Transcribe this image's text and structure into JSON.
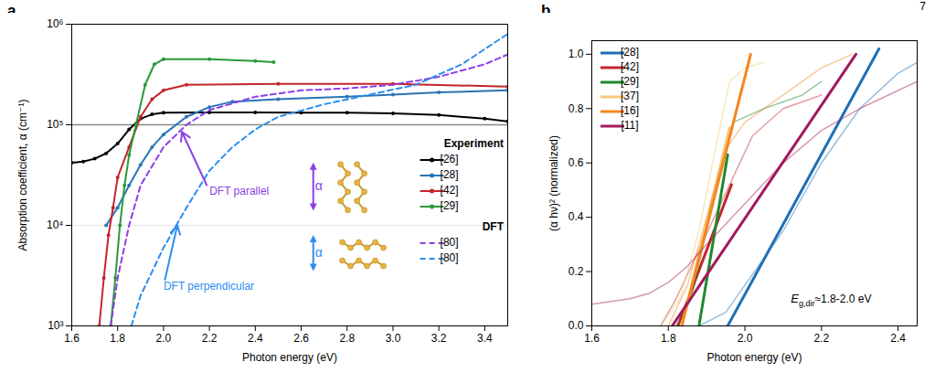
{
  "page_number": "7",
  "chart_data": [
    {
      "type": "line",
      "panel": "a",
      "x_label": "Photon energy (eV)",
      "y_label": "Absorption coefficient, α (cm⁻¹)",
      "xlim": [
        1.6,
        3.5
      ],
      "xticks": [
        1.6,
        1.8,
        {
          "value": 2,
          "label": "2.0"
        },
        2.2,
        2.4,
        2.6,
        2.8,
        {
          "value": 3,
          "label": "3.0"
        },
        3.2,
        3.4
      ],
      "ylim": [
        1000,
        1000000
      ],
      "yticks": [
        {
          "value": 1000,
          "label": "10³"
        },
        {
          "value": 10000,
          "label": "10⁴"
        },
        {
          "value": 100000,
          "label": "10⁵"
        },
        {
          "value": 1000000,
          "label": "10⁶"
        }
      ],
      "log": "y",
      "grid": true,
      "legend": "lower right",
      "reference_line": 100000,
      "series": [
        {
          "name": "[26]",
          "group": "Experiment",
          "color": "#000000",
          "marker": "circle",
          "line_style": "solid",
          "x": [
            1.6,
            1.65,
            1.7,
            1.75,
            1.8,
            1.85,
            1.9,
            1.95,
            2.0,
            2.2,
            2.4,
            2.6,
            2.8,
            3.0,
            3.2,
            3.4,
            3.5
          ],
          "values": [
            42000,
            43000,
            46000,
            52000,
            65000,
            90000,
            115000,
            127000,
            132000,
            133000,
            133000,
            132000,
            132000,
            130000,
            125000,
            115000,
            108000
          ]
        },
        {
          "name": "[28]",
          "group": "Experiment",
          "color": "#2a74b5",
          "marker": "circle",
          "line_style": "solid",
          "x": [
            1.75,
            1.8,
            1.85,
            1.9,
            1.95,
            2.0,
            2.1,
            2.2,
            2.3,
            2.5,
            2.8,
            3.0,
            3.2,
            3.5
          ],
          "values": [
            10000,
            15000,
            25000,
            40000,
            60000,
            80000,
            120000,
            150000,
            170000,
            180000,
            190000,
            200000,
            210000,
            220000
          ]
        },
        {
          "name": "[42]",
          "group": "Experiment",
          "color": "#c4252b",
          "marker": "circle",
          "line_style": "solid",
          "x": [
            1.72,
            1.74,
            1.76,
            1.78,
            1.8,
            1.85,
            1.9,
            1.95,
            2.0,
            2.1,
            2.5,
            3.0,
            3.5
          ],
          "values": [
            1000,
            3000,
            8000,
            15000,
            30000,
            60000,
            120000,
            180000,
            220000,
            250000,
            255000,
            255000,
            240000
          ]
        },
        {
          "name": "[29]",
          "group": "Experiment",
          "color": "#2a9a3a",
          "marker": "circle",
          "line_style": "solid",
          "x": [
            1.77,
            1.79,
            1.81,
            1.83,
            1.85,
            1.88,
            1.92,
            1.96,
            2.0,
            2.2,
            2.4,
            2.48
          ],
          "values": [
            1000,
            3000,
            10000,
            25000,
            50000,
            100000,
            250000,
            400000,
            450000,
            450000,
            430000,
            420000
          ]
        },
        {
          "name": "[80]",
          "group": "DFT",
          "color": "#8b3fe6",
          "line_style": "dashed",
          "x": [
            1.77,
            1.8,
            1.85,
            1.9,
            2.0,
            2.1,
            2.2,
            2.4,
            2.6,
            2.8,
            3.0,
            3.2,
            3.4,
            3.5
          ],
          "values": [
            1000,
            3000,
            10000,
            25000,
            60000,
            100000,
            140000,
            190000,
            220000,
            230000,
            250000,
            300000,
            400000,
            500000
          ]
        },
        {
          "name": "[80]",
          "group": "DFT",
          "color": "#2b8ef0",
          "line_style": "dashed",
          "x": [
            1.86,
            1.9,
            2.0,
            2.1,
            2.2,
            2.3,
            2.4,
            2.5,
            2.7,
            2.9,
            3.1,
            3.3,
            3.5
          ],
          "values": [
            1000,
            2000,
            6000,
            15000,
            35000,
            60000,
            90000,
            120000,
            160000,
            200000,
            250000,
            400000,
            800000
          ]
        }
      ],
      "annotations": [
        {
          "text": "DFT parallel",
          "x": 2.2,
          "y": 22000,
          "color": "#8b3fe6",
          "arrow_to": [
            2.08,
            85000
          ]
        },
        {
          "text": "DFT perpendicular",
          "x": 2.0,
          "y": 2500,
          "color": "#2b8ef0",
          "arrow_to": [
            2.06,
            10000
          ]
        }
      ],
      "icon_labels": [
        {
          "text": "α",
          "color": "#8b3fe6"
        },
        {
          "text": "α",
          "color": "#2b8ef0"
        }
      ]
    },
    {
      "type": "line",
      "panel": "b",
      "x_label": "Photon energy (eV)",
      "y_label": "(α hν)² (normalized)",
      "xlim": [
        1.6,
        2.45
      ],
      "xticks": [
        1.6,
        1.8,
        {
          "value": 2,
          "label": "2.0"
        },
        2.2,
        2.4
      ],
      "ylim": [
        0,
        1.05
      ],
      "yticks": [
        {
          "value": 0,
          "label": "0.0"
        },
        0.2,
        0.4,
        0.6,
        0.8,
        {
          "value": 1,
          "label": "1.0"
        }
      ],
      "grid": false,
      "legend": "upper left",
      "series": [
        {
          "name": "[28]",
          "color": "#1f6fb5",
          "line_style": "solid",
          "x": [
            1.88,
            1.95,
            2.0,
            2.1,
            2.2,
            2.3,
            2.4,
            2.45
          ],
          "values": [
            0,
            0.05,
            0.15,
            0.35,
            0.6,
            0.8,
            0.93,
            0.97
          ],
          "fit_x": [
            1.955,
            2.35
          ],
          "fit_values": [
            0,
            1.02
          ]
        },
        {
          "name": "[42]",
          "color": "#c1272d",
          "line_style": "solid",
          "x": [
            1.78,
            1.82,
            1.87,
            1.92,
            1.97,
            2.02,
            2.1,
            2.2
          ],
          "values": [
            0,
            0.1,
            0.25,
            0.4,
            0.55,
            0.7,
            0.8,
            0.85
          ],
          "fit_x": [
            1.825,
            1.965
          ],
          "fit_values": [
            0,
            0.52
          ]
        },
        {
          "name": "[29]",
          "color": "#1e8a2e",
          "line_style": "solid",
          "x": [
            1.82,
            1.86,
            1.9,
            1.94,
            1.97,
            2.05,
            2.15,
            2.2
          ],
          "values": [
            0,
            0.1,
            0.35,
            0.6,
            0.75,
            0.8,
            0.85,
            0.9
          ],
          "fit_x": [
            1.88,
            1.955
          ],
          "fit_values": [
            0,
            0.63
          ]
        },
        {
          "name": "[37]",
          "color": "#f7c978",
          "line_style": "solid",
          "x": [
            1.78,
            1.83,
            1.88,
            1.93,
            1.96,
            2.0,
            2.05
          ],
          "values": [
            0,
            0.1,
            0.35,
            0.7,
            0.9,
            0.95,
            0.97
          ],
          "fit_x": [
            1.835,
            1.96
          ],
          "fit_values": [
            0,
            0.73
          ]
        },
        {
          "name": "[16]",
          "color": "#f5861f",
          "line_style": "solid",
          "x": [
            1.8,
            1.85,
            1.9,
            1.95,
            2.0,
            2.1,
            2.2,
            2.28
          ],
          "values": [
            0,
            0.15,
            0.4,
            0.65,
            0.75,
            0.85,
            0.95,
            1.0
          ],
          "fit_x": [
            1.835,
            2.015
          ],
          "fit_values": [
            0,
            1.0
          ]
        },
        {
          "name": "[11]",
          "color": "#a3195b",
          "line_style": "solid",
          "x": [
            1.6,
            1.7,
            1.75,
            1.8,
            1.85,
            1.9,
            2.0,
            2.1,
            2.2,
            2.3,
            2.45
          ],
          "values": [
            0.08,
            0.1,
            0.12,
            0.16,
            0.22,
            0.3,
            0.45,
            0.6,
            0.72,
            0.8,
            0.9
          ],
          "fit_x": [
            1.81,
            2.29
          ],
          "fit_values": [
            0,
            1.0
          ]
        }
      ],
      "annotations": [
        {
          "symbol": "E",
          "subscript": "g,dir",
          "text": "≈1.8-2.0 eV",
          "x": 2.12,
          "y": 0.1,
          "color": "#000000"
        }
      ]
    }
  ]
}
